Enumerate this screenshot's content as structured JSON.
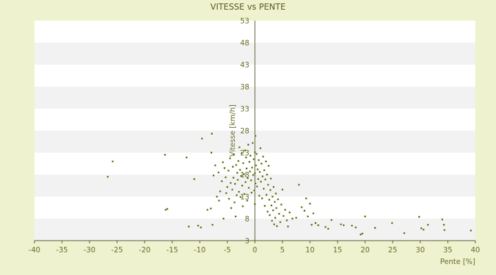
{
  "chart_data": {
    "type": "scatter",
    "title": "VITESSE vs PENTE",
    "xlabel": "Pente [%]",
    "ylabel": "Vitesse [km/h]",
    "xlim": [
      -40,
      40
    ],
    "ylim": [
      3,
      53
    ],
    "x_ticks": [
      -40,
      -35,
      -30,
      -25,
      -20,
      -15,
      -10,
      -5,
      0,
      5,
      10,
      15,
      20,
      25,
      30,
      35,
      40
    ],
    "y_ticks": [
      3,
      8,
      13,
      18,
      23,
      28,
      33,
      38,
      43,
      48,
      53
    ],
    "grid": "horizontal alternating bands",
    "colors": {
      "background": "#eef2cf",
      "band_white": "#ffffff",
      "band_gray": "#f2f2f2",
      "axis": "#55552a",
      "point": "#4a5a12",
      "text": "#6b6b2a"
    },
    "series": [
      {
        "points": [
          [
            -26.7,
            17.5
          ],
          [
            -25.8,
            21.0
          ],
          [
            -16.3,
            22.5
          ],
          [
            -16.2,
            10.0
          ],
          [
            -15.9,
            10.2
          ],
          [
            -12.4,
            21.9
          ],
          [
            -12.0,
            6.2
          ],
          [
            -11.0,
            17.0
          ],
          [
            -10.3,
            6.4
          ],
          [
            -9.8,
            6.0
          ],
          [
            -9.6,
            26.2
          ],
          [
            -8.6,
            10.0
          ],
          [
            -8.0,
            10.3
          ],
          [
            -7.9,
            23.0
          ],
          [
            -7.8,
            27.3
          ],
          [
            -7.7,
            6.6
          ],
          [
            -7.5,
            17.8
          ],
          [
            -7.2,
            20.1
          ],
          [
            -6.9,
            13.0
          ],
          [
            -6.6,
            18.5
          ],
          [
            -6.5,
            12.1
          ],
          [
            -6.3,
            14.2
          ],
          [
            -6.0,
            16.5
          ],
          [
            -5.8,
            20.8
          ],
          [
            -5.7,
            8.0
          ],
          [
            -5.5,
            19.5
          ],
          [
            -5.3,
            17.4
          ],
          [
            -5.2,
            13.8
          ],
          [
            -5.0,
            15.2
          ],
          [
            -4.8,
            18.9
          ],
          [
            -4.7,
            12.5
          ],
          [
            -4.5,
            21.7
          ],
          [
            -4.4,
            16.1
          ],
          [
            -4.3,
            10.4
          ],
          [
            -4.1,
            14.6
          ],
          [
            -4.0,
            19.8
          ],
          [
            -3.9,
            17.3
          ],
          [
            -3.8,
            22.5
          ],
          [
            -3.7,
            11.7
          ],
          [
            -3.6,
            15.9
          ],
          [
            -3.5,
            8.5
          ],
          [
            -3.4,
            20.2
          ],
          [
            -3.3,
            13.3
          ],
          [
            -3.2,
            18.4
          ],
          [
            -3.1,
            16.8
          ],
          [
            -3.0,
            21.1
          ],
          [
            -2.9,
            14.1
          ],
          [
            -2.8,
            24.2
          ],
          [
            -2.7,
            19.1
          ],
          [
            -2.6,
            12.9
          ],
          [
            -2.5,
            17.7
          ],
          [
            -2.4,
            22.9
          ],
          [
            -2.3,
            15.5
          ],
          [
            -2.2,
            10.8
          ],
          [
            -2.1,
            20.6
          ],
          [
            -2.0,
            18.1
          ],
          [
            -1.9,
            13.6
          ],
          [
            -1.8,
            23.5
          ],
          [
            -1.7,
            16.3
          ],
          [
            -1.6,
            21.9
          ],
          [
            -1.5,
            19.4
          ],
          [
            -1.4,
            12.1
          ],
          [
            -1.3,
            17.2
          ],
          [
            -1.2,
            24.8
          ],
          [
            -1.1,
            15.0
          ],
          [
            -1.0,
            20.9
          ],
          [
            -0.9,
            18.7
          ],
          [
            -0.8,
            22.3
          ],
          [
            -0.7,
            16.7
          ],
          [
            -0.6,
            13.9
          ],
          [
            -0.5,
            19.6
          ],
          [
            -0.4,
            25.2
          ],
          [
            -0.3,
            17.9
          ],
          [
            -0.2,
            21.5
          ],
          [
            -0.1,
            14.4
          ],
          [
            0.0,
            23.1
          ],
          [
            0.0,
            18.3
          ],
          [
            0.0,
            11.3
          ],
          [
            0.1,
            26.8
          ],
          [
            0.1,
            16.0
          ],
          [
            0.2,
            20.1
          ],
          [
            0.3,
            22.7
          ],
          [
            0.4,
            15.3
          ],
          [
            0.5,
            19.2
          ],
          [
            0.6,
            17.0
          ],
          [
            0.7,
            21.3
          ],
          [
            0.8,
            13.2
          ],
          [
            0.9,
            18.6
          ],
          [
            1.0,
            24.0
          ],
          [
            1.1,
            16.4
          ],
          [
            1.2,
            20.5
          ],
          [
            1.3,
            12.6
          ],
          [
            1.4,
            17.6
          ],
          [
            1.5,
            22.1
          ],
          [
            1.6,
            14.8
          ],
          [
            1.7,
            19.0
          ],
          [
            1.8,
            10.9
          ],
          [
            1.9,
            16.9
          ],
          [
            2.0,
            21.0
          ],
          [
            2.1,
            13.4
          ],
          [
            2.2,
            18.0
          ],
          [
            2.3,
            9.6
          ],
          [
            2.4,
            15.7
          ],
          [
            2.5,
            20.0
          ],
          [
            2.6,
            12.3
          ],
          [
            2.7,
            8.8
          ],
          [
            2.8,
            14.5
          ],
          [
            2.9,
            17.1
          ],
          [
            3.0,
            11.0
          ],
          [
            3.1,
            7.5
          ],
          [
            3.2,
            13.0
          ],
          [
            3.3,
            9.9
          ],
          [
            3.4,
            15.2
          ],
          [
            3.5,
            6.7
          ],
          [
            3.6,
            11.8
          ],
          [
            3.7,
            8.2
          ],
          [
            3.8,
            13.7
          ],
          [
            3.9,
            10.4
          ],
          [
            4.0,
            6.3
          ],
          [
            4.2,
            12.4
          ],
          [
            4.4,
            9.1
          ],
          [
            4.6,
            7.2
          ],
          [
            4.8,
            11.2
          ],
          [
            5.0,
            14.6
          ],
          [
            5.2,
            8.6
          ],
          [
            5.5,
            10.0
          ],
          [
            5.8,
            7.6
          ],
          [
            6.0,
            6.2
          ],
          [
            6.3,
            9.4
          ],
          [
            6.8,
            8.0
          ],
          [
            7.5,
            8.2
          ],
          [
            8.0,
            15.7
          ],
          [
            8.5,
            10.6
          ],
          [
            9.0,
            9.8
          ],
          [
            9.3,
            12.6
          ],
          [
            9.6,
            8.5
          ],
          [
            10.0,
            11.4
          ],
          [
            10.3,
            6.6
          ],
          [
            10.6,
            9.2
          ],
          [
            11.0,
            7.0
          ],
          [
            11.5,
            6.5
          ],
          [
            12.8,
            6.1
          ],
          [
            13.3,
            5.7
          ],
          [
            13.9,
            7.7
          ],
          [
            15.6,
            6.7
          ],
          [
            16.1,
            6.5
          ],
          [
            17.6,
            6.4
          ],
          [
            18.3,
            6.0
          ],
          [
            19.2,
            4.4
          ],
          [
            19.5,
            4.6
          ],
          [
            20.0,
            8.5
          ],
          [
            21.8,
            5.9
          ],
          [
            24.9,
            7.0
          ],
          [
            27.1,
            4.7
          ],
          [
            29.8,
            8.4
          ],
          [
            30.2,
            5.8
          ],
          [
            30.6,
            5.5
          ],
          [
            31.4,
            6.6
          ],
          [
            34.0,
            7.8
          ],
          [
            34.3,
            6.6
          ],
          [
            34.4,
            5.4
          ],
          [
            39.2,
            5.3
          ]
        ]
      }
    ]
  }
}
